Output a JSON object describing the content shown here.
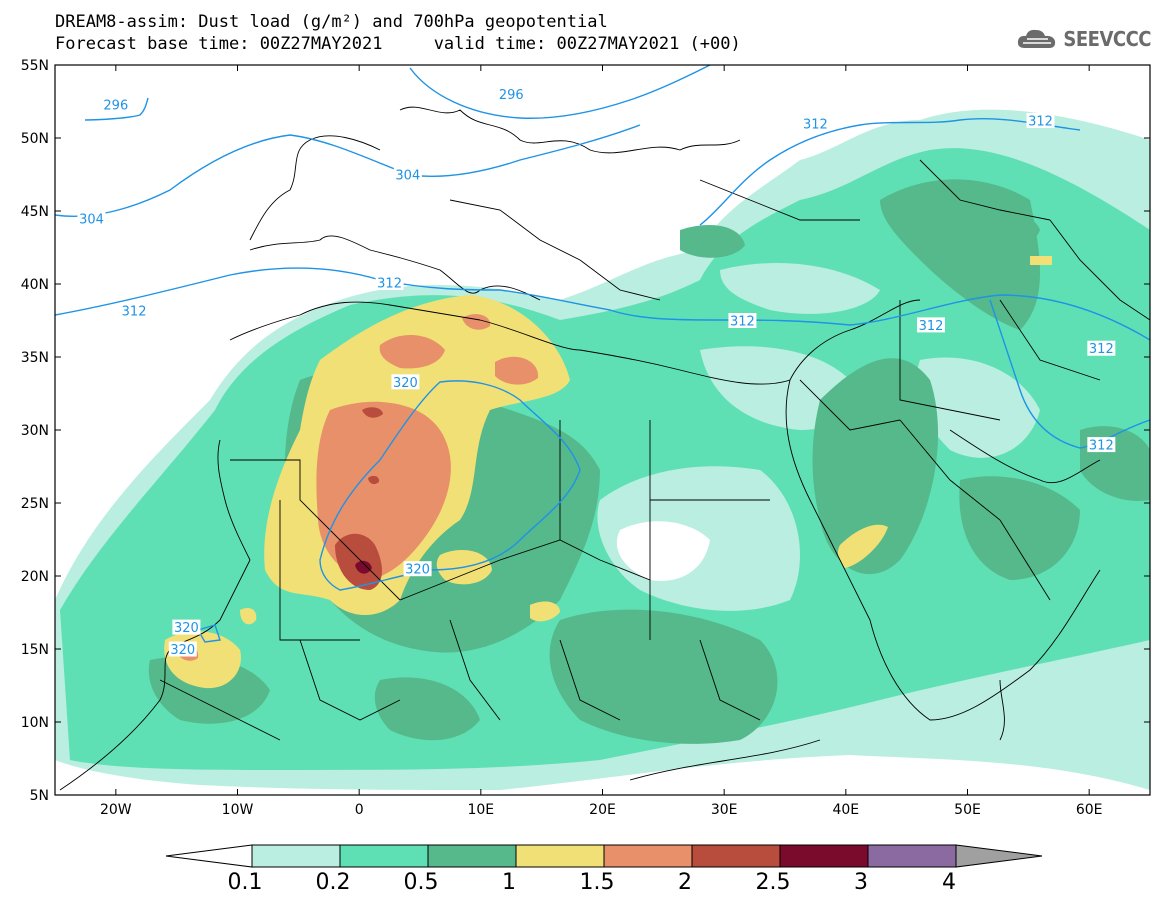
{
  "header": {
    "title_line1": "DREAM8-assim: Dust load (g/m²) and 700hPa geopotential",
    "title_line2": "Forecast base time: 00Z27MAY2021     valid time: 00Z27MAY2021 (+00)"
  },
  "logo": {
    "text": "SEEVCCC",
    "icon": "cloud-icon"
  },
  "map": {
    "lon_range": [
      -25,
      65
    ],
    "lat_range": [
      5,
      55
    ],
    "lon_ticks": [
      {
        "v": -20,
        "label": "20W"
      },
      {
        "v": -10,
        "label": "10W"
      },
      {
        "v": 0,
        "label": "0"
      },
      {
        "v": 10,
        "label": "10E"
      },
      {
        "v": 20,
        "label": "20E"
      },
      {
        "v": 30,
        "label": "30E"
      },
      {
        "v": 40,
        "label": "40E"
      },
      {
        "v": 50,
        "label": "50E"
      },
      {
        "v": 60,
        "label": "60E"
      }
    ],
    "lat_ticks": [
      {
        "v": 55,
        "label": "55N"
      },
      {
        "v": 50,
        "label": "50N"
      },
      {
        "v": 45,
        "label": "45N"
      },
      {
        "v": 40,
        "label": "40N"
      },
      {
        "v": 35,
        "label": "35N"
      },
      {
        "v": 30,
        "label": "30N"
      },
      {
        "v": 25,
        "label": "25N"
      },
      {
        "v": 20,
        "label": "20N"
      },
      {
        "v": 15,
        "label": "15N"
      },
      {
        "v": 10,
        "label": "10N"
      },
      {
        "v": 5,
        "label": "5N"
      }
    ],
    "contour_labels": [
      {
        "text": "296",
        "lon": -20,
        "lat": 52.3
      },
      {
        "text": "296",
        "lon": 12.5,
        "lat": 53.0
      },
      {
        "text": "304",
        "lon": -22,
        "lat": 44.5
      },
      {
        "text": "304",
        "lon": 4,
        "lat": 47.5
      },
      {
        "text": "312",
        "lon": -18.5,
        "lat": 38.2
      },
      {
        "text": "312",
        "lon": 2.5,
        "lat": 40.1
      },
      {
        "text": "312",
        "lon": 37.5,
        "lat": 51.0
      },
      {
        "text": "312",
        "lon": 56,
        "lat": 51.2
      },
      {
        "text": "312",
        "lon": 31.5,
        "lat": 37.5
      },
      {
        "text": "312",
        "lon": 47,
        "lat": 37.2
      },
      {
        "text": "312",
        "lon": 61,
        "lat": 35.6
      },
      {
        "text": "312",
        "lon": 61,
        "lat": 29.0
      },
      {
        "text": "320",
        "lon": 3.8,
        "lat": 33.3
      },
      {
        "text": "320",
        "lon": 4.8,
        "lat": 20.5
      },
      {
        "text": "320",
        "lon": -14.2,
        "lat": 16.5
      },
      {
        "text": "320",
        "lon": -14.5,
        "lat": 15.0
      }
    ]
  },
  "colorbar": {
    "levels": [
      "0.1",
      "0.2",
      "0.5",
      "1",
      "1.5",
      "2",
      "2.5",
      "3",
      "4"
    ],
    "colors": [
      "#b9eee0",
      "#5fe0b4",
      "#55b98b",
      "#f1e075",
      "#e8906a",
      "#b84d3e",
      "#7a0b2c",
      "#8a6aa0"
    ],
    "under_color": "#ffffff",
    "over_color": "#a0a0a0"
  },
  "colors": {
    "contour_line": "#1f93e6",
    "coast_line": "#000000"
  }
}
